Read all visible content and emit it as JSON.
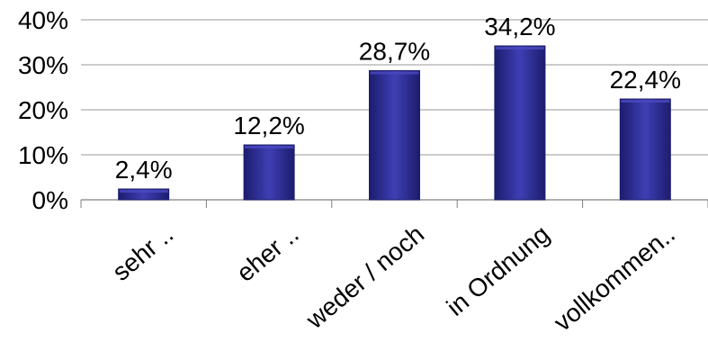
{
  "chart_data": {
    "type": "bar",
    "categories": [
      "sehr ..",
      "eher ..",
      "weder / noch",
      "in Ordnung",
      "vollkommen.."
    ],
    "values": [
      2.4,
      12.2,
      28.7,
      34.2,
      22.4
    ],
    "value_labels": [
      "2,4%",
      "12,2%",
      "28,7%",
      "34,2%",
      "22,4%"
    ],
    "y_ticks": [
      0,
      10,
      20,
      30,
      40
    ],
    "y_tick_labels": [
      "0%",
      "10%",
      "20%",
      "30%",
      "40%"
    ],
    "ylim": [
      0,
      40
    ],
    "grid": true,
    "legend": "none",
    "title": "",
    "xlabel": "",
    "ylabel": "",
    "colors": {
      "bar_dark": "#1c1c6e",
      "bar_mid": "#3434a4",
      "bar_light": "#4a4ac0",
      "grid": "#9a9a9a",
      "axis": "#808080",
      "text": "#000000"
    }
  }
}
